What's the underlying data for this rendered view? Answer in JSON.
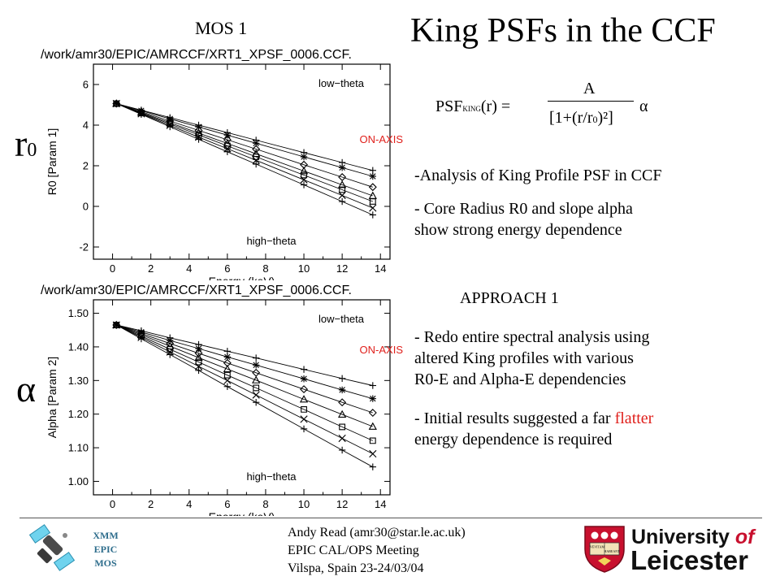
{
  "slide": {
    "title": "King PSFs in the CCF",
    "mos_label": "MOS 1",
    "r0_symbol": "r0",
    "alpha_symbol": "α"
  },
  "formula": {
    "lhs": "PSF",
    "lhs_sub": "KING",
    "lhs_arg": "(r) =",
    "numerator": "A",
    "denominator": "[1+(r/r0)²]",
    "exponent": "α"
  },
  "bullets": {
    "b1": "-Analysis of King Profile PSF in CCF",
    "b2_line1": "- Core Radius R0 and slope alpha",
    "b2_line2": "show strong energy dependence",
    "approach": "APPROACH 1",
    "b3_line1": "- Redo entire spectral analysis using",
    "b3_line2": "altered King profiles with various",
    "b3_line3": "R0-E and Alpha-E dependencies",
    "b4_pre": "- Initial results suggested a far ",
    "b4_highlight": "flatter",
    "b4_line2": "energy dependence is required"
  },
  "footer": {
    "xmm_line1": "XMM",
    "xmm_line2": "EPIC",
    "xmm_line3": "MOS",
    "author": "Andy Read (amr30@star.le.ac.uk)",
    "meeting": "EPIC CAL/OPS Meeting",
    "place": "Vilspa, Spain 23-24/03/04",
    "university_line1": "University",
    "university_of": "of",
    "university_line2": "Leicester",
    "crest_motto_1": "VEVITAM",
    "crest_motto_2": "HABEANT"
  },
  "colors": {
    "highlight": "#e0201c",
    "on_axis": "#e0201c",
    "uni_red": "#c8102e",
    "xmm_blue": "#2e6d8c"
  },
  "chart_data": [
    {
      "type": "line",
      "path_title": "/work/amr30/EPIC/AMRCCF/XRT1_XPSF_0006.CCF.",
      "xlabel": "Energy (keV)",
      "ylabel": "R0 [Param 1]",
      "xlim": [
        -1,
        14.5
      ],
      "ylim": [
        -2.6,
        7
      ],
      "xticks": [
        0,
        2,
        4,
        6,
        8,
        10,
        12,
        14
      ],
      "yticks": [
        -2,
        0,
        2,
        4,
        6
      ],
      "x": [
        0.2,
        1.5,
        3.0,
        4.5,
        6.0,
        7.5,
        10.0,
        12.0,
        13.6
      ],
      "annotations": {
        "top": "low−theta",
        "bottom": "high−theta",
        "on_axis": "ON-AXIS"
      },
      "series": [
        {
          "marker": "+",
          "values": [
            5.06,
            4.74,
            4.37,
            4.0,
            3.63,
            3.26,
            2.65,
            2.16,
            1.77
          ]
        },
        {
          "marker": "*",
          "values": [
            5.06,
            4.71,
            4.31,
            3.91,
            3.51,
            3.11,
            2.44,
            1.91,
            1.48
          ]
        },
        {
          "marker": "◇",
          "values": [
            5.06,
            4.66,
            4.2,
            3.74,
            3.28,
            2.82,
            2.05,
            1.44,
            0.95
          ]
        },
        {
          "marker": "△",
          "values": [
            5.06,
            4.62,
            4.12,
            3.61,
            3.1,
            2.59,
            1.74,
            1.06,
            0.52
          ]
        },
        {
          "marker": "□",
          "values": [
            5.06,
            4.59,
            4.06,
            3.52,
            2.98,
            2.44,
            1.54,
            0.82,
            0.24
          ]
        },
        {
          "marker": "×",
          "values": [
            5.06,
            4.56,
            3.99,
            3.41,
            2.84,
            2.27,
            1.31,
            0.54,
            -0.08
          ]
        },
        {
          "marker": "+",
          "values": [
            5.06,
            4.53,
            3.92,
            3.3,
            2.69,
            2.08,
            1.06,
            0.24,
            -0.42
          ]
        }
      ]
    },
    {
      "type": "line",
      "path_title": "/work/amr30/EPIC/AMRCCF/XRT1_XPSF_0006.CCF.",
      "xlabel": "Energy (keV)",
      "ylabel": "Alpha [Param 2]",
      "xlim": [
        -1,
        14.5
      ],
      "ylim": [
        0.96,
        1.54
      ],
      "xticks": [
        0,
        2,
        4,
        6,
        8,
        10,
        12,
        14
      ],
      "yticks": [
        1.0,
        1.1,
        1.2,
        1.3,
        1.4,
        1.5
      ],
      "ytick_labels": [
        "1.00",
        "1.10",
        "1.20",
        "1.30",
        "1.40",
        "1.50"
      ],
      "x": [
        0.2,
        1.5,
        3.0,
        4.5,
        6.0,
        7.5,
        10.0,
        12.0,
        13.6
      ],
      "annotations": {
        "top": "low−theta",
        "bottom": "high−theta",
        "on_axis": "ON-AXIS"
      },
      "series": [
        {
          "marker": "+",
          "values": [
            1.465,
            1.448,
            1.427,
            1.407,
            1.387,
            1.367,
            1.333,
            1.306,
            1.285
          ]
        },
        {
          "marker": "*",
          "values": [
            1.465,
            1.444,
            1.419,
            1.395,
            1.37,
            1.346,
            1.305,
            1.272,
            1.246
          ]
        },
        {
          "marker": "◇",
          "values": [
            1.465,
            1.44,
            1.41,
            1.381,
            1.352,
            1.323,
            1.274,
            1.235,
            1.204
          ]
        },
        {
          "marker": "△",
          "values": [
            1.465,
            1.436,
            1.402,
            1.368,
            1.334,
            1.301,
            1.244,
            1.199,
            1.163
          ]
        },
        {
          "marker": "□",
          "values": [
            1.465,
            1.432,
            1.393,
            1.355,
            1.316,
            1.278,
            1.214,
            1.162,
            1.121
          ]
        },
        {
          "marker": "×",
          "values": [
            1.465,
            1.428,
            1.385,
            1.342,
            1.3,
            1.257,
            1.185,
            1.128,
            1.082
          ]
        },
        {
          "marker": "+",
          "values": [
            1.465,
            1.424,
            1.377,
            1.33,
            1.282,
            1.235,
            1.156,
            1.093,
            1.043
          ]
        }
      ]
    }
  ]
}
